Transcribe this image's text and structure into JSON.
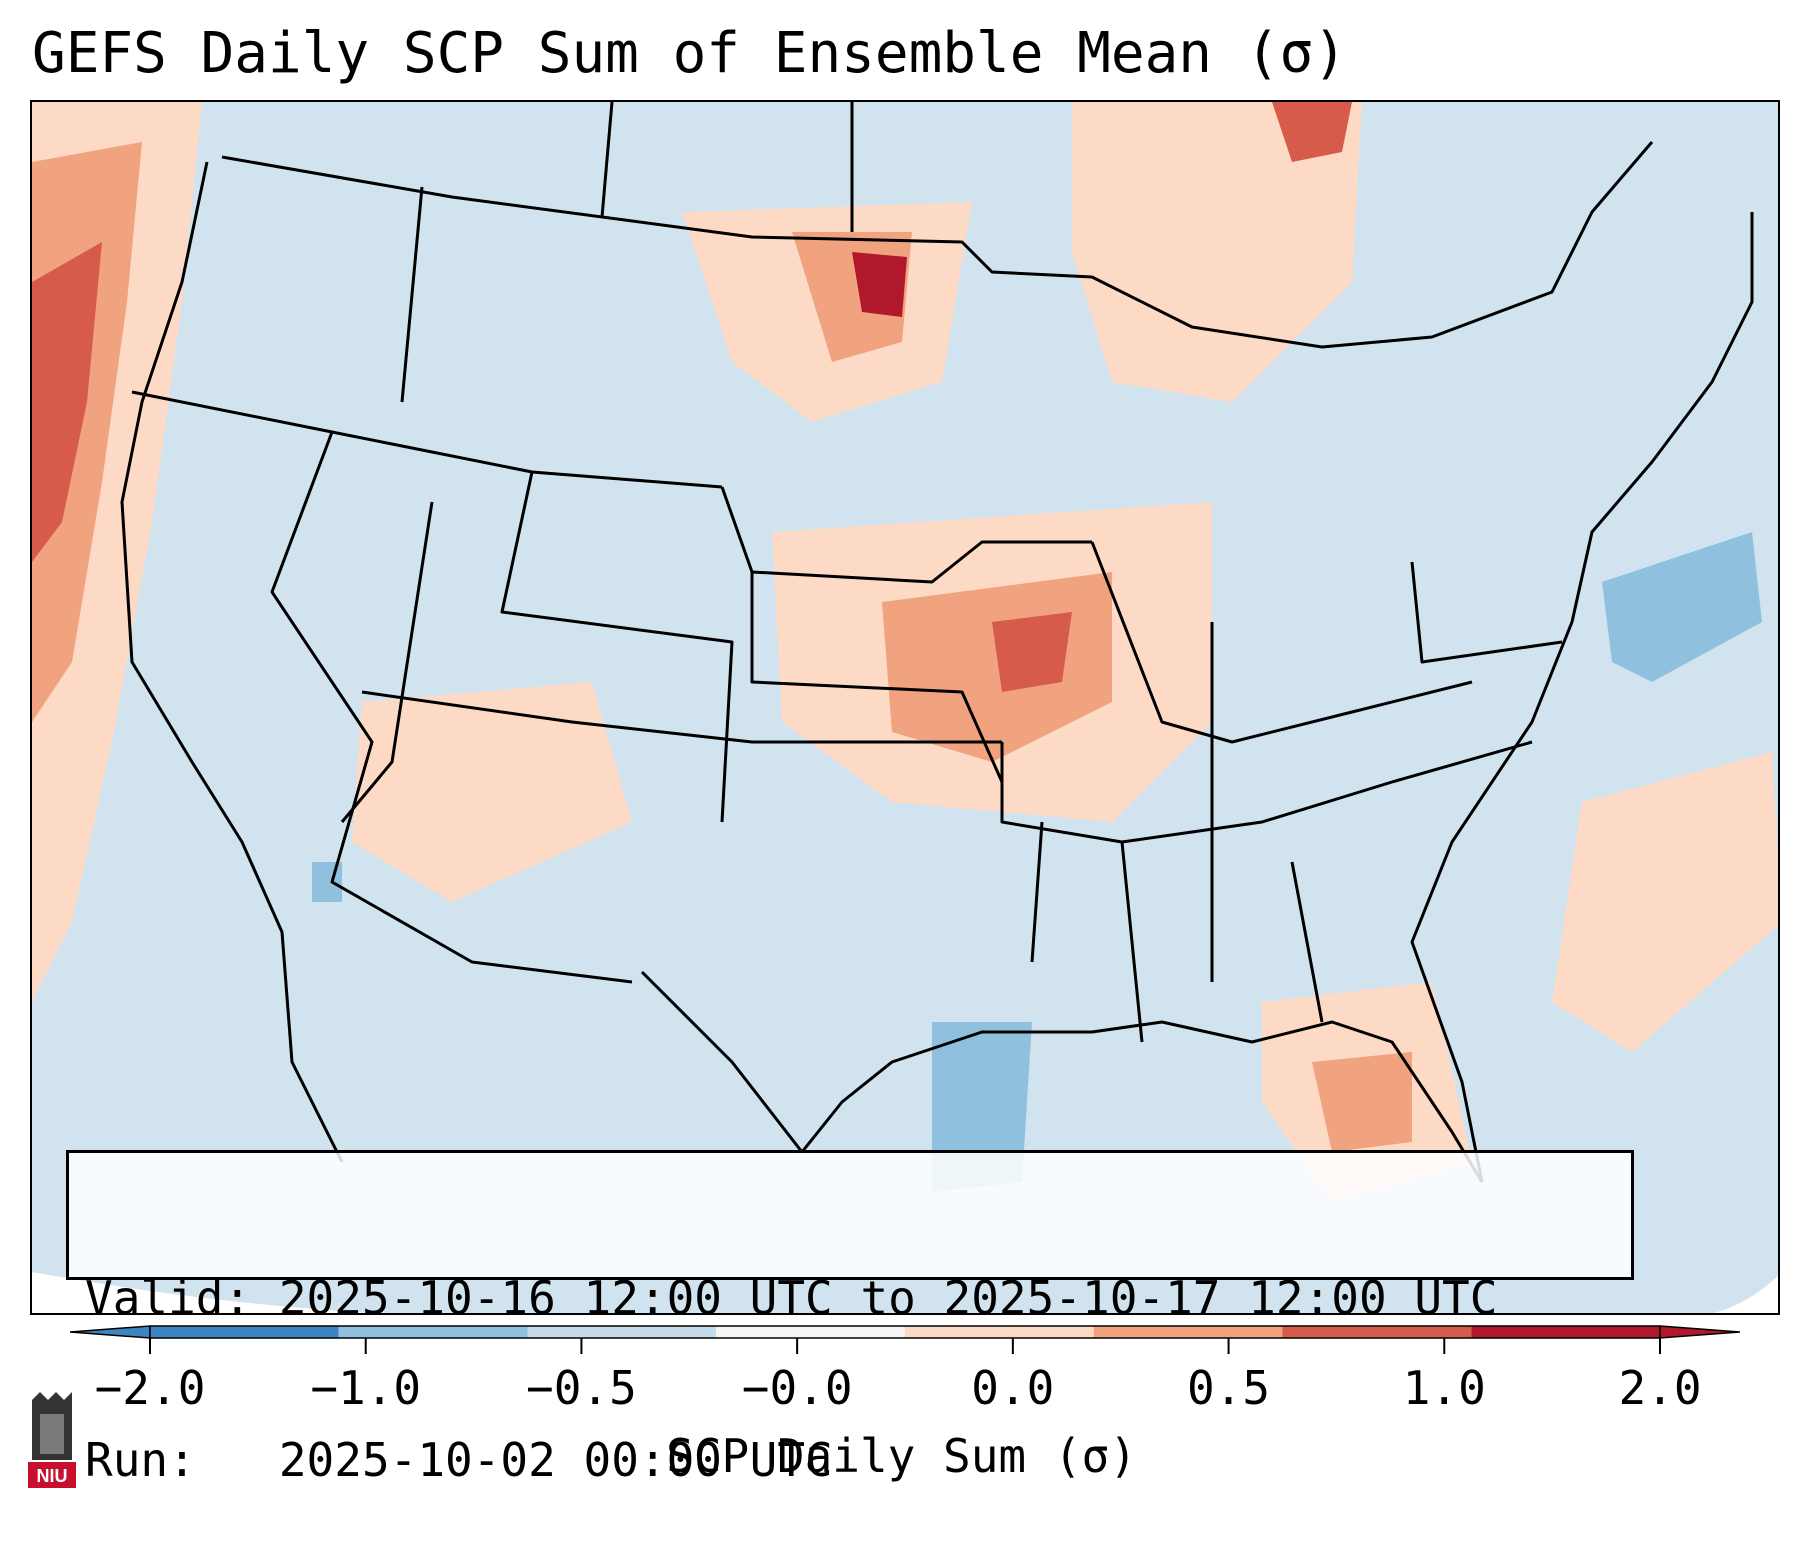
{
  "title": "GEFS Daily SCP Sum of Ensemble Mean (σ)",
  "info": {
    "valid": "Valid: 2025-10-16 12:00 UTC to 2025-10-17 12:00 UTC",
    "run": "Run:   2025-10-02 00:00 UTC"
  },
  "colorbar": {
    "label": "SCP Daily Sum (σ)",
    "ticks": [
      "−2.0",
      "−1.0",
      "−0.5",
      "−0.0",
      "0.0",
      "0.5",
      "1.0",
      "2.0"
    ],
    "colors": [
      "#3d85c0",
      "#8fc0dd",
      "#c3dbea",
      "#f5f5f5",
      "#fddac6",
      "#f1a27f",
      "#d75b4b",
      "#b2182b"
    ],
    "extend": "both"
  },
  "logo": {
    "text": "NIU",
    "color": "#c8102e"
  }
}
